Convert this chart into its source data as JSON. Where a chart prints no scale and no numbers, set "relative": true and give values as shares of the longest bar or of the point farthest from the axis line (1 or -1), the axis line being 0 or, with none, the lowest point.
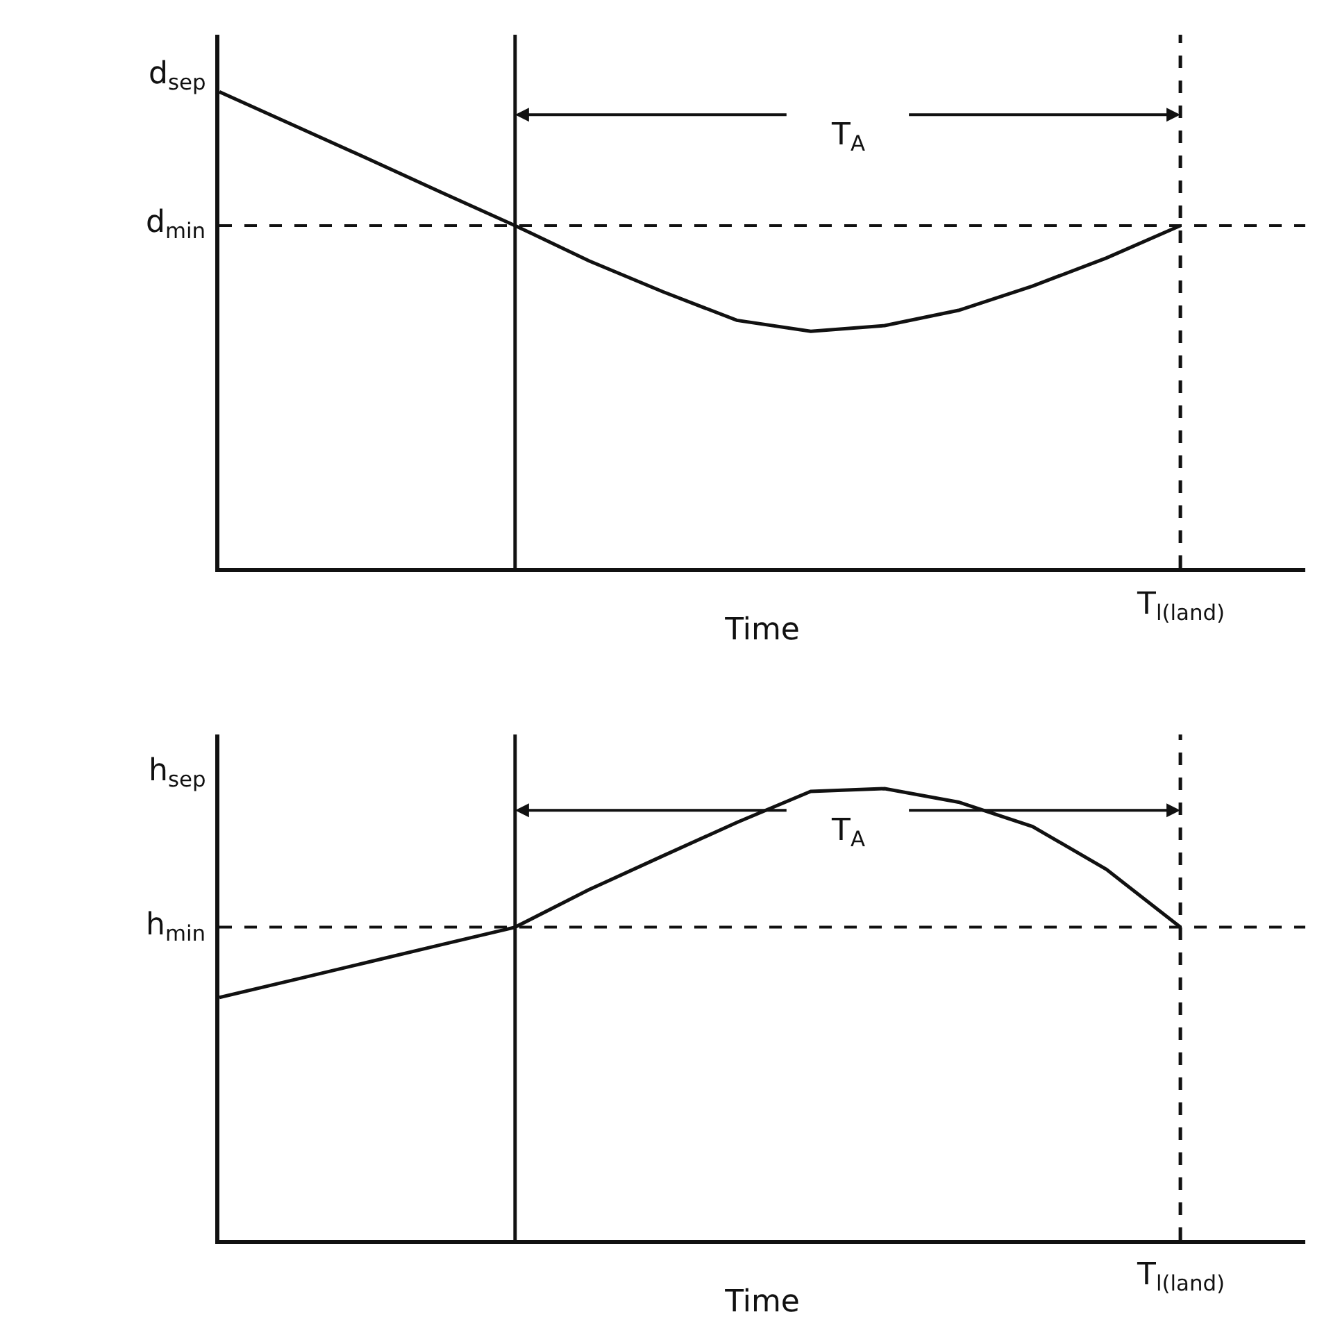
{
  "chart_data": [
    {
      "type": "line",
      "relative": true,
      "xlabel": "Time",
      "ylabel": "d$_{sep}$",
      "categories": [
        null,
        null,
        null,
        null,
        null,
        null,
        null,
        null,
        null,
        null,
        null,
        null,
        null,
        null
      ],
      "series": [
        {
          "color": "#111111",
          "values": [
            1,
            0.93,
            0.86,
            0.789,
            0.719,
            0.645,
            0.58,
            0.52,
            0.497,
            0.509,
            0.541,
            0.592,
            0.651,
            0.719
          ]
        }
      ],
      "ref_lines": [
        {
          "axis": "y",
          "value": 0.719,
          "label": "d$_{min}$",
          "line_style": "dashed",
          "color": "#111111"
        }
      ],
      "annotations": [
        "T$_{A}$",
        "T$_{l(land)}$"
      ],
      "grid": false,
      "marker": "none",
      "line_style": "solid"
    },
    {
      "type": "line",
      "relative": true,
      "xlabel": "Time",
      "ylabel": "h$_{sep}$",
      "categories": [
        null,
        null,
        null,
        null,
        null,
        null,
        null,
        null,
        null,
        null,
        null,
        null,
        null,
        null
      ],
      "series": [
        {
          "color": "#111111",
          "values": [
            0.537,
            0.576,
            0.615,
            0.654,
            0.693,
            0.776,
            0.851,
            0.925,
            0.994,
            1,
            0.97,
            0.916,
            0.821,
            0.693
          ]
        }
      ],
      "ref_lines": [
        {
          "axis": "y",
          "value": 0.693,
          "label": "h$_{min}$",
          "line_style": "dashed",
          "color": "#111111"
        }
      ],
      "annotations": [
        "T$_{A}$",
        "T$_{l(land)}$"
      ],
      "grid": false,
      "marker": "none",
      "line_style": "solid"
    }
  ]
}
